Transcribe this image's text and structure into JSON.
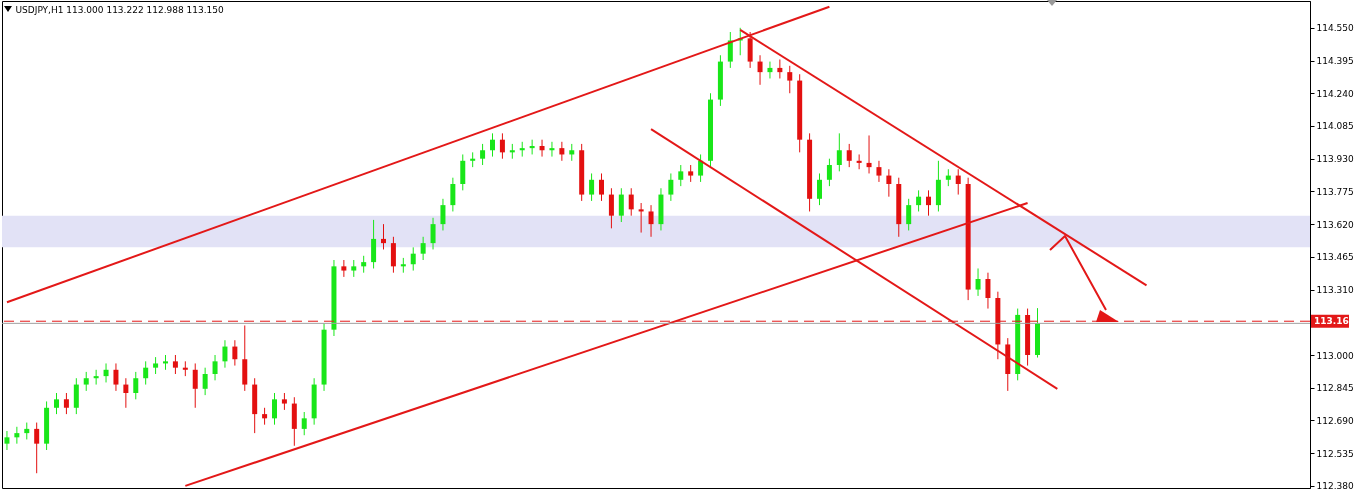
{
  "chart_data": {
    "type": "candlestick",
    "title": "USDJPY,H1  113.000 113.222 112.988 113.150",
    "categories": [
      null,
      null,
      null,
      null,
      null,
      null,
      null,
      null,
      null,
      null,
      null,
      null,
      null,
      null,
      null,
      null,
      null,
      null,
      null,
      null,
      null,
      null,
      null,
      null,
      null,
      null,
      null,
      null,
      null,
      null,
      null,
      null,
      null,
      null,
      null,
      null,
      null,
      null,
      null,
      null,
      null,
      null,
      null,
      null,
      null,
      null,
      null,
      null,
      null,
      null,
      null,
      null,
      null,
      null,
      null,
      null,
      null,
      null,
      null,
      null,
      null,
      null,
      null,
      null,
      null,
      null,
      null,
      null,
      null,
      null,
      null,
      null,
      null,
      null,
      null,
      null,
      null,
      null,
      null,
      null,
      null,
      null,
      null,
      null,
      null,
      null,
      null,
      null,
      null,
      null,
      null,
      null,
      null,
      null,
      null,
      null,
      null,
      null,
      null,
      null,
      null,
      null,
      null,
      null,
      null,
      null,
      null,
      null,
      null,
      null,
      null,
      null,
      null,
      null,
      null,
      null,
      null,
      null,
      null,
      null,
      null,
      null,
      null,
      null,
      null,
      null,
      null,
      null,
      null,
      null,
      null,
      null
    ],
    "ohlc": [
      [
        112.58,
        112.64,
        112.55,
        112.61
      ],
      [
        112.61,
        112.66,
        112.58,
        112.63
      ],
      [
        112.63,
        112.68,
        112.6,
        112.65
      ],
      [
        112.65,
        112.68,
        112.44,
        112.58
      ],
      [
        112.58,
        112.78,
        112.55,
        112.75
      ],
      [
        112.75,
        112.82,
        112.72,
        112.79
      ],
      [
        112.79,
        112.82,
        112.72,
        112.75
      ],
      [
        112.75,
        112.89,
        112.72,
        112.86
      ],
      [
        112.86,
        112.92,
        112.83,
        112.89
      ],
      [
        112.89,
        112.93,
        112.86,
        112.9
      ],
      [
        112.9,
        112.96,
        112.87,
        112.93
      ],
      [
        112.93,
        112.96,
        112.83,
        112.86
      ],
      [
        112.86,
        112.89,
        112.75,
        112.82
      ],
      [
        112.82,
        112.92,
        112.79,
        112.89
      ],
      [
        112.89,
        112.97,
        112.86,
        112.94
      ],
      [
        112.94,
        112.99,
        112.91,
        112.96
      ],
      [
        112.96,
        113.0,
        112.93,
        112.97
      ],
      [
        112.97,
        113.0,
        112.91,
        112.94
      ],
      [
        112.94,
        112.97,
        112.9,
        112.93
      ],
      [
        112.93,
        112.96,
        112.75,
        112.84
      ],
      [
        112.84,
        112.94,
        112.81,
        112.91
      ],
      [
        112.91,
        113.0,
        112.88,
        112.97
      ],
      [
        112.97,
        113.07,
        112.94,
        113.04
      ],
      [
        113.04,
        113.07,
        112.95,
        112.98
      ],
      [
        112.98,
        113.14,
        112.83,
        112.86
      ],
      [
        112.86,
        112.89,
        112.63,
        112.72
      ],
      [
        112.72,
        112.75,
        112.67,
        112.7
      ],
      [
        112.7,
        112.82,
        112.67,
        112.79
      ],
      [
        112.79,
        112.82,
        112.74,
        112.77
      ],
      [
        112.77,
        112.8,
        112.57,
        112.65
      ],
      [
        112.65,
        112.73,
        112.62,
        112.7
      ],
      [
        112.7,
        112.89,
        112.67,
        112.86
      ],
      [
        112.86,
        113.15,
        112.83,
        113.12
      ],
      [
        113.12,
        113.45,
        113.09,
        113.42
      ],
      [
        113.42,
        113.45,
        113.37,
        113.4
      ],
      [
        113.4,
        113.45,
        113.37,
        113.42
      ],
      [
        113.42,
        113.47,
        113.39,
        113.44
      ],
      [
        113.44,
        113.64,
        113.41,
        113.55
      ],
      [
        113.55,
        113.62,
        113.5,
        113.53
      ],
      [
        113.53,
        113.56,
        113.39,
        113.42
      ],
      [
        113.42,
        113.46,
        113.39,
        113.43
      ],
      [
        113.43,
        113.51,
        113.4,
        113.48
      ],
      [
        113.48,
        113.56,
        113.45,
        113.53
      ],
      [
        113.53,
        113.65,
        113.5,
        113.62
      ],
      [
        113.62,
        113.74,
        113.59,
        113.71
      ],
      [
        113.71,
        113.84,
        113.68,
        113.81
      ],
      [
        113.81,
        113.95,
        113.78,
        113.92
      ],
      [
        113.92,
        113.96,
        113.89,
        113.93
      ],
      [
        113.93,
        114.0,
        113.9,
        113.97
      ],
      [
        113.97,
        114.05,
        113.94,
        114.02
      ],
      [
        114.02,
        114.05,
        113.93,
        113.96
      ],
      [
        113.96,
        114.0,
        113.93,
        113.97
      ],
      [
        113.97,
        114.01,
        113.94,
        113.98
      ],
      [
        113.98,
        114.02,
        113.95,
        113.99
      ],
      [
        113.99,
        114.02,
        113.94,
        113.97
      ],
      [
        113.97,
        114.01,
        113.94,
        113.98
      ],
      [
        113.98,
        114.01,
        113.92,
        113.95
      ],
      [
        113.95,
        114.0,
        113.92,
        113.97
      ],
      [
        113.97,
        114.0,
        113.73,
        113.76
      ],
      [
        113.76,
        113.86,
        113.73,
        113.83
      ],
      [
        113.83,
        113.86,
        113.73,
        113.76
      ],
      [
        113.76,
        113.79,
        113.6,
        113.66
      ],
      [
        113.66,
        113.79,
        113.63,
        113.76
      ],
      [
        113.76,
        113.79,
        113.66,
        113.69
      ],
      [
        113.69,
        113.72,
        113.58,
        113.68
      ],
      [
        113.68,
        113.71,
        113.56,
        113.62
      ],
      [
        113.62,
        113.79,
        113.59,
        113.76
      ],
      [
        113.76,
        113.86,
        113.73,
        113.83
      ],
      [
        113.83,
        113.9,
        113.8,
        113.87
      ],
      [
        113.87,
        113.9,
        113.82,
        113.85
      ],
      [
        113.85,
        113.95,
        113.82,
        113.92
      ],
      [
        113.92,
        114.24,
        113.89,
        114.21
      ],
      [
        114.21,
        114.42,
        114.18,
        114.39
      ],
      [
        114.39,
        114.53,
        114.36,
        114.49
      ],
      [
        114.49,
        114.55,
        114.42,
        114.5
      ],
      [
        114.5,
        114.53,
        114.36,
        114.39
      ],
      [
        114.39,
        114.42,
        114.28,
        114.34
      ],
      [
        114.34,
        114.39,
        114.31,
        114.36
      ],
      [
        114.36,
        114.4,
        114.31,
        114.34
      ],
      [
        114.34,
        114.37,
        114.24,
        114.3
      ],
      [
        114.3,
        114.33,
        113.96,
        114.02
      ],
      [
        114.02,
        114.05,
        113.68,
        113.74
      ],
      [
        113.74,
        113.86,
        113.71,
        113.83
      ],
      [
        113.83,
        113.93,
        113.8,
        113.9
      ],
      [
        113.9,
        114.05,
        113.87,
        113.97
      ],
      [
        113.97,
        114.0,
        113.89,
        113.92
      ],
      [
        113.92,
        113.95,
        113.88,
        113.91
      ],
      [
        113.91,
        114.04,
        113.86,
        113.89
      ],
      [
        113.89,
        113.92,
        113.82,
        113.85
      ],
      [
        113.85,
        113.88,
        113.75,
        113.81
      ],
      [
        113.81,
        113.84,
        113.56,
        113.62
      ],
      [
        113.62,
        113.74,
        113.59,
        113.71
      ],
      [
        113.71,
        113.78,
        113.68,
        113.75
      ],
      [
        113.75,
        113.78,
        113.66,
        113.71
      ],
      [
        113.71,
        113.92,
        113.68,
        113.83
      ],
      [
        113.83,
        113.88,
        113.8,
        113.85
      ],
      [
        113.85,
        113.88,
        113.76,
        113.81
      ],
      [
        113.81,
        113.84,
        113.26,
        113.31
      ],
      [
        113.31,
        113.41,
        113.28,
        113.36
      ],
      [
        113.36,
        113.39,
        113.22,
        113.27
      ],
      [
        113.27,
        113.3,
        112.98,
        113.05
      ],
      [
        113.05,
        113.08,
        112.83,
        112.91
      ],
      [
        112.91,
        113.22,
        112.88,
        113.19
      ],
      [
        113.19,
        113.22,
        112.95,
        113.0
      ],
      [
        113.0,
        113.222,
        112.988,
        113.15
      ],
      null,
      null,
      null,
      null,
      null,
      null,
      null,
      null,
      null,
      null,
      null,
      null,
      null,
      null,
      null,
      null,
      null,
      null,
      null,
      null,
      null,
      null,
      null,
      null,
      null,
      null,
      null
    ],
    "series": [
      {
        "type": "line",
        "color": "#e31818",
        "values": [
          113.25,
          null,
          null,
          null,
          null,
          null,
          null,
          null,
          null,
          null,
          null,
          null,
          null,
          null,
          null,
          null,
          null,
          null,
          null,
          null,
          null,
          null,
          null,
          null,
          null,
          null,
          null,
          null,
          null,
          null,
          null,
          null,
          null,
          null,
          null,
          null,
          null,
          null,
          null,
          null,
          null,
          null,
          null,
          null,
          null,
          null,
          null,
          null,
          null,
          null,
          null,
          null,
          null,
          null,
          null,
          null,
          null,
          null,
          null,
          null,
          null,
          null,
          null,
          null,
          null,
          null,
          null,
          null,
          null,
          null,
          null,
          null,
          null,
          null,
          null,
          null,
          null,
          null,
          null,
          null,
          null,
          null,
          null,
          114.65,
          null,
          null,
          null,
          null,
          null,
          null,
          null,
          null,
          null,
          null,
          null,
          null,
          null,
          null,
          null,
          null,
          null,
          null,
          null,
          null,
          null,
          null,
          null,
          null,
          null,
          null,
          null,
          null,
          null,
          null,
          null,
          null,
          null,
          null,
          null,
          null,
          null,
          null,
          null,
          null,
          null,
          null,
          null,
          null,
          null,
          null,
          null,
          null
        ]
      },
      {
        "type": "line",
        "color": "#e31818",
        "values": [
          null,
          null,
          null,
          null,
          null,
          null,
          null,
          null,
          null,
          null,
          null,
          null,
          null,
          null,
          null,
          null,
          null,
          null,
          112.38,
          null,
          null,
          null,
          null,
          null,
          null,
          null,
          null,
          null,
          null,
          null,
          null,
          null,
          null,
          null,
          null,
          null,
          null,
          null,
          null,
          null,
          null,
          null,
          null,
          null,
          null,
          null,
          null,
          null,
          null,
          null,
          null,
          null,
          null,
          null,
          null,
          null,
          null,
          null,
          null,
          null,
          null,
          null,
          null,
          null,
          null,
          null,
          null,
          null,
          null,
          null,
          null,
          null,
          null,
          null,
          null,
          null,
          null,
          null,
          null,
          null,
          null,
          null,
          null,
          null,
          null,
          null,
          null,
          null,
          null,
          null,
          null,
          null,
          null,
          null,
          null,
          null,
          null,
          null,
          null,
          null,
          null,
          null,
          null,
          113.72,
          null,
          null,
          null,
          null,
          null,
          null,
          null,
          null,
          null,
          null,
          null,
          null,
          null,
          null,
          null,
          null,
          null,
          null,
          null,
          null,
          null,
          null,
          null,
          null,
          null,
          null,
          null,
          null
        ]
      },
      {
        "type": "line",
        "color": "#e31818",
        "values": [
          null,
          null,
          null,
          null,
          null,
          null,
          null,
          null,
          null,
          null,
          null,
          null,
          null,
          null,
          null,
          null,
          null,
          null,
          null,
          null,
          null,
          null,
          null,
          null,
          null,
          null,
          null,
          null,
          null,
          null,
          null,
          null,
          null,
          null,
          null,
          null,
          null,
          null,
          null,
          null,
          null,
          null,
          null,
          null,
          null,
          null,
          null,
          null,
          null,
          null,
          null,
          null,
          null,
          null,
          null,
          null,
          null,
          null,
          null,
          null,
          null,
          null,
          null,
          null,
          null,
          null,
          null,
          null,
          null,
          null,
          null,
          null,
          null,
          null,
          114.54,
          null,
          null,
          null,
          null,
          null,
          null,
          null,
          null,
          null,
          null,
          null,
          null,
          null,
          null,
          null,
          null,
          null,
          null,
          null,
          null,
          null,
          null,
          null,
          null,
          null,
          null,
          null,
          null,
          null,
          null,
          null,
          null,
          null,
          null,
          null,
          null,
          null,
          null,
          null,
          null,
          113.33,
          null,
          null,
          null,
          null,
          null,
          null,
          null,
          null,
          null,
          null,
          null,
          null,
          null,
          null,
          null,
          null
        ]
      },
      {
        "type": "line",
        "color": "#e31818",
        "values": [
          null,
          null,
          null,
          null,
          null,
          null,
          null,
          null,
          null,
          null,
          null,
          null,
          null,
          null,
          null,
          null,
          null,
          null,
          null,
          null,
          null,
          null,
          null,
          null,
          null,
          null,
          null,
          null,
          null,
          null,
          null,
          null,
          null,
          null,
          null,
          null,
          null,
          null,
          null,
          null,
          null,
          null,
          null,
          null,
          null,
          null,
          null,
          null,
          null,
          null,
          null,
          null,
          null,
          null,
          null,
          null,
          null,
          null,
          null,
          null,
          null,
          null,
          null,
          null,
          null,
          114.07,
          null,
          null,
          null,
          null,
          null,
          null,
          null,
          null,
          null,
          null,
          null,
          null,
          null,
          null,
          null,
          null,
          null,
          null,
          null,
          null,
          null,
          null,
          null,
          null,
          null,
          null,
          null,
          null,
          null,
          null,
          null,
          null,
          null,
          null,
          null,
          null,
          null,
          null,
          null,
          null,
          112.84,
          null,
          null,
          null,
          null,
          null,
          null,
          null,
          null,
          null,
          null,
          null,
          null,
          null,
          null,
          null,
          null,
          null,
          null,
          null,
          null,
          null,
          null,
          null,
          null,
          null
        ]
      }
    ],
    "bands": [
      {
        "axis": "y",
        "from": 113.51,
        "to": 113.66,
        "color": "#e2e2f6"
      }
    ],
    "ref_lines": [
      {
        "axis": "y",
        "value": 113.16,
        "label": "113.16",
        "color": "#e31818",
        "line_style": "dashed"
      },
      {
        "axis": "y",
        "value": 113.15,
        "color": "#a0a0a0",
        "line_style": "solid"
      }
    ],
    "ylim": [
      112.37,
      114.677
    ],
    "yticks": [
      {
        "value": 112.38,
        "label": "112.380"
      },
      {
        "value": 112.535,
        "label": "112.535"
      },
      {
        "value": 112.69,
        "label": "112.690"
      },
      {
        "value": 112.845,
        "label": "112.845"
      },
      {
        "value": 113.0,
        "label": "113.000"
      },
      {
        "value": 113.31,
        "label": "113.310"
      },
      {
        "value": 113.465,
        "label": "113.465"
      },
      {
        "value": 113.62,
        "label": "113.620"
      },
      {
        "value": 113.775,
        "label": "113.775"
      },
      {
        "value": 113.93,
        "label": "113.930"
      },
      {
        "value": 114.085,
        "label": "114.085"
      },
      {
        "value": 114.24,
        "label": "114.240"
      },
      {
        "value": 114.395,
        "label": "114.395"
      },
      {
        "value": 114.55,
        "label": "114.550"
      }
    ],
    "tick_labels": "y",
    "grid": false
  }
}
